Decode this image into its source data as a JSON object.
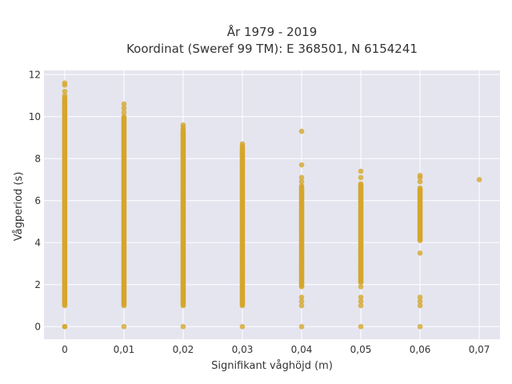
{
  "chart_data": {
    "type": "scatter",
    "title_line1": "År 1979 - 2019",
    "title_line2": "Koordinat (Sweref 99 TM): E 368501, N 6154241",
    "xlabel": "Signifikant våghöjd (m)",
    "ylabel": "Vågperiod (s)",
    "xlim": [
      -0.0035,
      0.0735
    ],
    "ylim": [
      -0.6,
      12.2
    ],
    "xticks": [
      0,
      0.01,
      0.02,
      0.03,
      0.04,
      0.05,
      0.06,
      0.07
    ],
    "xtick_labels": [
      "0",
      "0,01",
      "0,02",
      "0,03",
      "0,04",
      "0,05",
      "0,06",
      "0,07"
    ],
    "yticks": [
      0,
      2,
      4,
      6,
      8,
      10,
      12
    ],
    "ytick_labels": [
      "0",
      "2",
      "4",
      "6",
      "8",
      "10",
      "12"
    ],
    "grid": true,
    "colors": {
      "marker": "#d4a62a",
      "plot_bg": "#e5e5f0",
      "grid": "#ffffff"
    },
    "series": [
      {
        "columns": [
          {
            "x": 0,
            "dense_range": [
              1.0,
              10.9
            ],
            "extra_points": [
              0,
              0,
              11.0,
              11.2,
              11.5,
              11.6
            ]
          },
          {
            "x": 0.01,
            "dense_range": [
              1.0,
              10.0
            ],
            "extra_points": [
              0,
              10.2,
              10.4,
              10.6
            ]
          },
          {
            "x": 0.02,
            "dense_range": [
              1.0,
              9.4
            ],
            "extra_points": [
              0,
              9.5,
              9.6
            ]
          },
          {
            "x": 0.03,
            "dense_range": [
              1.0,
              8.6
            ],
            "extra_points": [
              0,
              8.7
            ]
          },
          {
            "x": 0.04,
            "dense_range": [
              1.9,
              6.7
            ],
            "extra_points": [
              0,
              1.0,
              1.2,
              1.4,
              6.9,
              7.1,
              7.7,
              9.3
            ]
          },
          {
            "x": 0.05,
            "dense_range": [
              2.1,
              6.8
            ],
            "extra_points": [
              0,
              1.0,
              1.2,
              1.4,
              1.9,
              7.1,
              7.4
            ]
          },
          {
            "x": 0.06,
            "dense_range": [
              4.1,
              6.6
            ],
            "extra_points": [
              0,
              1.0,
              1.2,
              1.4,
              3.5,
              6.9,
              7.1,
              7.2
            ]
          },
          {
            "x": 0.07,
            "dense_range": null,
            "extra_points": [
              7.0
            ]
          }
        ]
      }
    ]
  }
}
